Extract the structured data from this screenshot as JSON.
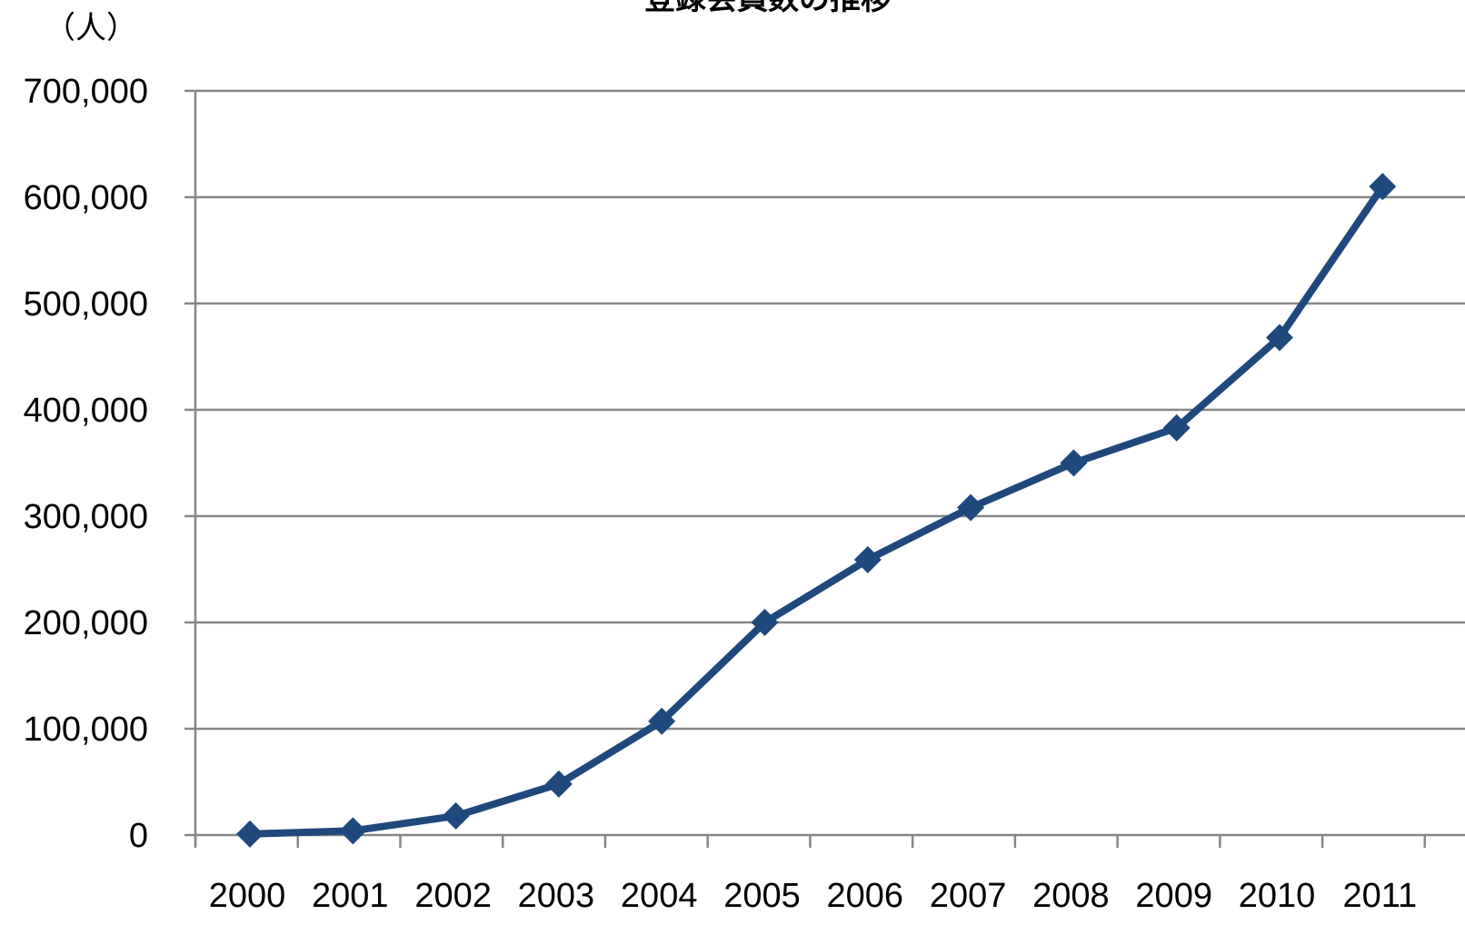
{
  "chart_data": {
    "type": "line",
    "title": "登録会員数の推移",
    "ylabel": "（人）",
    "xlabel": "",
    "categories": [
      "2000",
      "2001",
      "2002",
      "2003",
      "2004",
      "2005",
      "2006",
      "2007",
      "2008",
      "2009",
      "2010",
      "2011"
    ],
    "y_tick_labels": [
      "0",
      "100,000",
      "200,000",
      "300,000",
      "400,000",
      "500,000",
      "600,000",
      "700,000"
    ],
    "ylim": [
      0,
      700000
    ],
    "y_ticks": [
      0,
      100000,
      200000,
      300000,
      400000,
      500000,
      600000,
      700000
    ],
    "grid": true,
    "legend": "none",
    "series": [
      {
        "values": [
          1000,
          4000,
          18000,
          48000,
          107000,
          200000,
          259000,
          308000,
          350000,
          383000,
          468000,
          610000
        ],
        "color": "#1f497d",
        "marker": "diamond"
      }
    ]
  }
}
